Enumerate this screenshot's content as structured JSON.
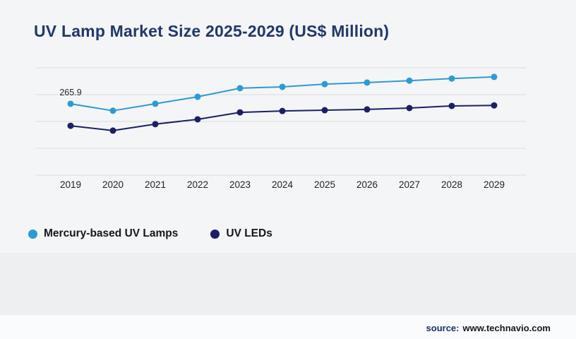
{
  "title": "UV Lamp Market Size 2025-2029 (US$ Million)",
  "legend": [
    {
      "label": "Mercury-based UV Lamps",
      "color": "#2d9bd3"
    },
    {
      "label": "UV LEDs",
      "color": "#1b2065"
    }
  ],
  "source": {
    "prefix": "source:",
    "url": "www.technavio.com"
  },
  "chart_data": {
    "type": "line",
    "title": "UV Lamp Market Size 2025-2029 (US$ Million)",
    "categories": [
      "2019",
      "2020",
      "2021",
      "2022",
      "2023",
      "2024",
      "2025",
      "2026",
      "2027",
      "2028",
      "2029"
    ],
    "series": [
      {
        "name": "Mercury-based UV Lamps",
        "color": "#2d9bd3",
        "values": [
          265.9,
          240,
          266,
          292,
          324,
          329,
          339,
          345,
          352,
          360,
          366
        ]
      },
      {
        "name": "UV LEDs",
        "color": "#1b2065",
        "values": [
          184,
          166,
          190,
          208,
          234,
          239,
          242,
          245,
          250,
          258,
          260
        ]
      }
    ],
    "xlabel": "",
    "ylabel": "",
    "ylim": [
      0,
      400
    ],
    "grid": true,
    "gridline_step": 100,
    "legend_position": "bottom",
    "annotations": [
      {
        "series": 0,
        "index": 0,
        "text": "265.9"
      }
    ]
  }
}
